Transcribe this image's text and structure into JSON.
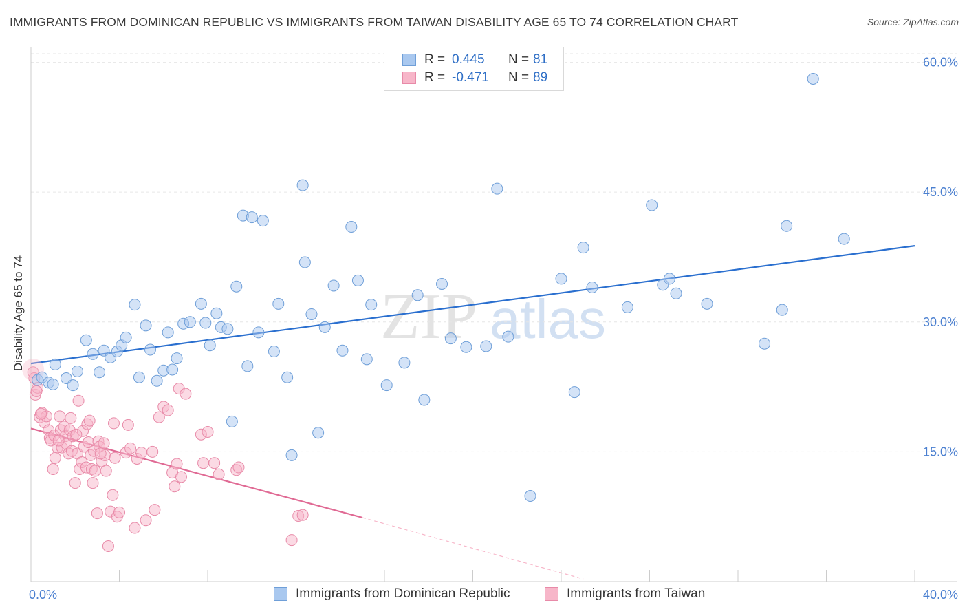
{
  "header": {
    "title": "IMMIGRANTS FROM DOMINICAN REPUBLIC VS IMMIGRANTS FROM TAIWAN DISABILITY AGE 65 TO 74 CORRELATION CHART",
    "source": "Source: ZipAtlas.com"
  },
  "watermark": {
    "zip": "ZIP",
    "atlas": "atlas"
  },
  "legend": {
    "rows": [
      {
        "r_label": "R =",
        "r_value": "0.445",
        "n_label": "N =",
        "n_value": "81",
        "color": "#a9c8ef",
        "border": "#6f9fd8"
      },
      {
        "r_label": "R =",
        "r_value": "-0.471",
        "n_label": "N =",
        "n_value": "89",
        "color": "#f7b6c9",
        "border": "#e88aa8"
      }
    ]
  },
  "bottom_legend": {
    "dominican": "Immigrants from Dominican Republic",
    "taiwan": "Immigrants from Taiwan"
  },
  "chart_data": {
    "type": "scatter",
    "title": "IMMIGRANTS FROM DOMINICAN REPUBLIC VS IMMIGRANTS FROM TAIWAN DISABILITY AGE 65 TO 74 CORRELATION CHART",
    "ylabel": "Disability Age 65 to 74",
    "xlabel": "",
    "xlim": [
      0,
      40
    ],
    "ylim": [
      0,
      61
    ],
    "x_tick_labels": [
      "0.0%",
      "40.0%"
    ],
    "y_ticks": [
      15,
      30,
      45,
      60
    ],
    "y_tick_labels": [
      "15.0%",
      "30.0%",
      "45.0%",
      "60.0%"
    ],
    "grid": true,
    "colors": {
      "blue": "#6f9fd8",
      "blue_fill": "#a9c8ef",
      "blue_line": "#2a6fcf",
      "pink": "#e88aa8",
      "pink_fill": "#f7b6c9",
      "pink_line": "#e06a94",
      "tick_label": "#4a7fd0"
    },
    "series": [
      {
        "name": "Immigrants from Dominican Republic",
        "trend": {
          "x0": 0,
          "y0": 25.2,
          "x1": 40,
          "y1": 38.8
        },
        "points": [
          [
            0.3,
            23.3
          ],
          [
            0.5,
            23.6
          ],
          [
            0.8,
            23.0
          ],
          [
            1.0,
            22.8
          ],
          [
            1.1,
            25.1
          ],
          [
            1.6,
            23.5
          ],
          [
            1.9,
            22.7
          ],
          [
            2.1,
            24.3
          ],
          [
            2.5,
            27.9
          ],
          [
            2.8,
            26.3
          ],
          [
            3.1,
            24.2
          ],
          [
            3.3,
            26.7
          ],
          [
            3.6,
            25.9
          ],
          [
            3.9,
            26.6
          ],
          [
            4.1,
            27.3
          ],
          [
            4.3,
            28.2
          ],
          [
            4.7,
            32.0
          ],
          [
            4.9,
            23.6
          ],
          [
            5.2,
            29.6
          ],
          [
            5.4,
            26.8
          ],
          [
            5.7,
            23.2
          ],
          [
            6.0,
            24.4
          ],
          [
            6.2,
            28.8
          ],
          [
            6.4,
            24.5
          ],
          [
            6.6,
            25.8
          ],
          [
            6.9,
            29.8
          ],
          [
            7.2,
            30.0
          ],
          [
            7.7,
            32.1
          ],
          [
            7.9,
            29.9
          ],
          [
            8.1,
            27.3
          ],
          [
            8.4,
            31.0
          ],
          [
            8.6,
            29.4
          ],
          [
            8.9,
            29.2
          ],
          [
            9.1,
            18.5
          ],
          [
            9.3,
            34.1
          ],
          [
            9.6,
            42.3
          ],
          [
            9.8,
            24.9
          ],
          [
            10.0,
            42.1
          ],
          [
            10.3,
            28.8
          ],
          [
            10.5,
            41.7
          ],
          [
            11.0,
            26.6
          ],
          [
            11.2,
            32.1
          ],
          [
            11.6,
            23.6
          ],
          [
            11.8,
            14.6
          ],
          [
            12.3,
            45.8
          ],
          [
            12.4,
            36.9
          ],
          [
            12.7,
            30.9
          ],
          [
            13.0,
            17.2
          ],
          [
            13.3,
            29.4
          ],
          [
            13.7,
            34.2
          ],
          [
            14.1,
            26.7
          ],
          [
            14.5,
            41.0
          ],
          [
            14.8,
            34.8
          ],
          [
            15.2,
            25.7
          ],
          [
            15.4,
            32.0
          ],
          [
            16.1,
            22.7
          ],
          [
            16.9,
            25.3
          ],
          [
            17.5,
            33.1
          ],
          [
            17.8,
            21.0
          ],
          [
            18.6,
            34.4
          ],
          [
            19.0,
            28.1
          ],
          [
            19.7,
            27.1
          ],
          [
            20.6,
            27.2
          ],
          [
            21.1,
            45.4
          ],
          [
            21.6,
            28.3
          ],
          [
            22.6,
            9.9
          ],
          [
            24.0,
            35.0
          ],
          [
            24.6,
            21.9
          ],
          [
            25.0,
            38.6
          ],
          [
            25.4,
            34.0
          ],
          [
            27.0,
            31.7
          ],
          [
            28.1,
            43.5
          ],
          [
            28.6,
            34.3
          ],
          [
            28.9,
            35.0
          ],
          [
            29.2,
            33.3
          ],
          [
            30.6,
            32.1
          ],
          [
            33.2,
            27.5
          ],
          [
            34.0,
            31.4
          ],
          [
            34.2,
            41.1
          ],
          [
            35.4,
            58.1
          ],
          [
            36.8,
            39.6
          ]
        ]
      },
      {
        "name": "Immigrants from Taiwan",
        "trend": {
          "x0": 0,
          "y0": 17.7,
          "x1": 15,
          "y1": 7.4
        },
        "trend_dashed_to": {
          "x": 25,
          "y": 0.3
        },
        "points": [
          [
            0.1,
            24.2
          ],
          [
            0.2,
            21.6
          ],
          [
            0.3,
            22.4
          ],
          [
            0.4,
            19.0
          ],
          [
            0.5,
            19.5
          ],
          [
            0.6,
            18.4
          ],
          [
            0.7,
            19.1
          ],
          [
            0.8,
            17.5
          ],
          [
            0.85,
            16.6
          ],
          [
            0.9,
            16.3
          ],
          [
            1.0,
            13.0
          ],
          [
            1.05,
            16.9
          ],
          [
            1.1,
            14.3
          ],
          [
            1.2,
            15.5
          ],
          [
            1.3,
            19.1
          ],
          [
            1.35,
            17.5
          ],
          [
            1.4,
            15.5
          ],
          [
            1.5,
            17.9
          ],
          [
            1.55,
            16.8
          ],
          [
            1.6,
            15.9
          ],
          [
            1.7,
            14.8
          ],
          [
            1.75,
            17.5
          ],
          [
            1.8,
            18.9
          ],
          [
            1.85,
            15.1
          ],
          [
            1.9,
            16.8
          ],
          [
            2.0,
            11.4
          ],
          [
            2.1,
            14.8
          ],
          [
            2.15,
            20.9
          ],
          [
            2.2,
            13.0
          ],
          [
            2.3,
            13.8
          ],
          [
            2.35,
            17.4
          ],
          [
            2.4,
            15.6
          ],
          [
            2.5,
            13.2
          ],
          [
            2.55,
            18.2
          ],
          [
            2.6,
            16.1
          ],
          [
            2.65,
            18.6
          ],
          [
            2.7,
            14.6
          ],
          [
            2.75,
            13.0
          ],
          [
            2.8,
            11.4
          ],
          [
            2.85,
            15.1
          ],
          [
            2.9,
            12.8
          ],
          [
            3.0,
            7.9
          ],
          [
            3.05,
            16.2
          ],
          [
            3.1,
            15.6
          ],
          [
            3.2,
            13.9
          ],
          [
            3.3,
            16.0
          ],
          [
            3.35,
            14.6
          ],
          [
            3.4,
            12.8
          ],
          [
            3.5,
            4.1
          ],
          [
            3.6,
            8.1
          ],
          [
            3.7,
            10.0
          ],
          [
            3.75,
            18.3
          ],
          [
            3.8,
            14.3
          ],
          [
            3.9,
            7.5
          ],
          [
            4.0,
            8.0
          ],
          [
            4.3,
            14.9
          ],
          [
            4.4,
            18.1
          ],
          [
            4.5,
            15.4
          ],
          [
            4.7,
            6.2
          ],
          [
            4.8,
            14.2
          ],
          [
            5.0,
            14.9
          ],
          [
            5.2,
            7.1
          ],
          [
            5.5,
            15.0
          ],
          [
            5.6,
            8.3
          ],
          [
            5.8,
            19.0
          ],
          [
            6.0,
            20.2
          ],
          [
            6.2,
            19.8
          ],
          [
            6.4,
            12.6
          ],
          [
            6.5,
            11.0
          ],
          [
            6.6,
            13.6
          ],
          [
            6.7,
            22.3
          ],
          [
            6.8,
            12.1
          ],
          [
            7.0,
            21.7
          ],
          [
            7.7,
            17.0
          ],
          [
            7.8,
            13.7
          ],
          [
            8.0,
            17.3
          ],
          [
            8.3,
            13.7
          ],
          [
            8.5,
            12.4
          ],
          [
            9.3,
            12.9
          ],
          [
            9.4,
            13.2
          ],
          [
            11.8,
            4.8
          ],
          [
            12.1,
            7.6
          ],
          [
            12.3,
            7.7
          ],
          [
            0.15,
            23.5
          ],
          [
            0.25,
            22.0
          ],
          [
            0.45,
            19.4
          ],
          [
            1.25,
            16.3
          ],
          [
            2.05,
            17.0
          ],
          [
            3.15,
            14.8
          ]
        ]
      }
    ]
  }
}
